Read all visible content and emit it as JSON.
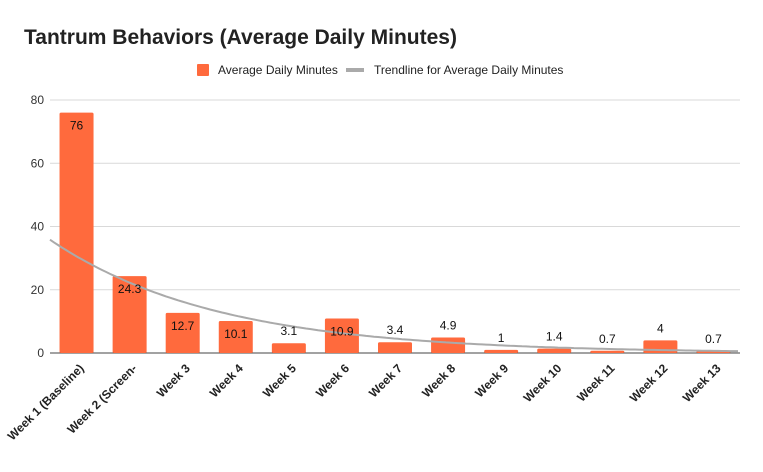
{
  "chart_data": {
    "type": "bar",
    "title": "Tantrum Behaviors (Average Daily Minutes)",
    "xlabel": "",
    "ylabel": "",
    "categories": [
      "Week 1 (Baseline)",
      "Week 2 (Screen-",
      "Week 3",
      "Week 4",
      "Week 5",
      "Week 6",
      "Week 7",
      "Week 8",
      "Week 9",
      "Week 10",
      "Week 11",
      "Week 12",
      "Week 13"
    ],
    "series": [
      {
        "name": "Average Daily Minutes",
        "values": [
          76,
          24.3,
          12.7,
          10.1,
          3.1,
          10.9,
          3.4,
          4.9,
          1,
          1.4,
          0.7,
          4,
          0.7
        ],
        "data_labels": [
          "76",
          "24.3",
          "12.7",
          "10.1",
          "3.1",
          "10.9",
          "3.4",
          "4.9",
          "1",
          "1.4",
          "0.7",
          "4",
          "0.7"
        ],
        "color": "#ff6a3d"
      }
    ],
    "trendline": {
      "name": "Trendline for Average Daily Minutes",
      "type": "exponential",
      "color": "#aaaaaa"
    },
    "ylim": [
      0,
      80
    ],
    "yticks": [
      "0",
      "20",
      "40",
      "60",
      "80"
    ],
    "grid": true,
    "legend_position": "top-center"
  }
}
